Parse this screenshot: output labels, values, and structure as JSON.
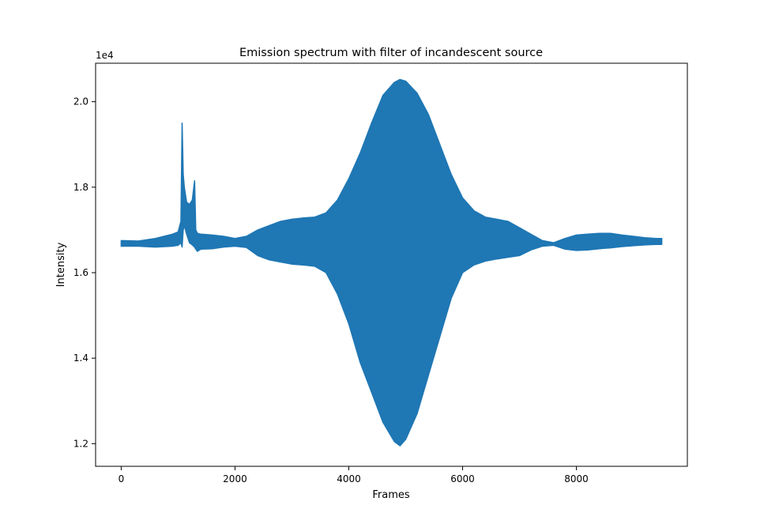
{
  "chart_data": {
    "type": "line",
    "title": "Emission spectrum with filter of incandescent source",
    "xlabel": "Frames",
    "ylabel": "Intensity",
    "y_offset_label": "1e4",
    "xlim": [
      -450,
      9950
    ],
    "ylim": [
      11470,
      20900
    ],
    "xticks": [
      0,
      2000,
      4000,
      6000,
      8000
    ],
    "xtick_labels": [
      "0",
      "2000",
      "4000",
      "6000",
      "8000"
    ],
    "yticks": [
      12000,
      14000,
      16000,
      18000,
      20000
    ],
    "ytick_labels": [
      "1.2",
      "1.4",
      "1.6",
      "1.8",
      "2.0"
    ],
    "grid": false,
    "legend": "none",
    "series_color": "#1f77b4",
    "series": [
      {
        "x": [
          0,
          300,
          600,
          900,
          1000,
          1050,
          1070,
          1090,
          1110,
          1150,
          1200,
          1250,
          1290,
          1310,
          1340,
          1400,
          1600,
          1800,
          2000,
          2200,
          2400,
          2600,
          2800,
          3000,
          3200,
          3400,
          3600,
          3800,
          4000,
          4200,
          4400,
          4600,
          4800,
          4900,
          5000,
          5200,
          5400,
          5600,
          5800,
          6000,
          6200,
          6400,
          6600,
          6800,
          7000,
          7200,
          7400,
          7600,
          7800,
          8000,
          8200,
          8400,
          8600,
          8800,
          9000,
          9200,
          9400,
          9500
        ],
        "upper": [
          16750,
          16740,
          16800,
          16900,
          16950,
          17200,
          19500,
          18300,
          18000,
          17650,
          17600,
          17700,
          18150,
          17000,
          16920,
          16900,
          16880,
          16850,
          16800,
          16850,
          17000,
          17100,
          17200,
          17250,
          17280,
          17300,
          17400,
          17700,
          18200,
          18800,
          19500,
          20150,
          20450,
          20520,
          20480,
          20200,
          19700,
          19000,
          18300,
          17750,
          17450,
          17300,
          17250,
          17200,
          17050,
          16900,
          16750,
          16700,
          16800,
          16880,
          16900,
          16920,
          16920,
          16880,
          16850,
          16820,
          16800,
          16800
        ],
        "lower": [
          16620,
          16620,
          16600,
          16620,
          16640,
          16700,
          16600,
          17000,
          17100,
          16900,
          16700,
          16650,
          16600,
          16550,
          16500,
          16550,
          16560,
          16600,
          16620,
          16590,
          16400,
          16300,
          16250,
          16200,
          16180,
          16150,
          16000,
          15500,
          14800,
          13900,
          13200,
          12500,
          12050,
          11950,
          12100,
          12700,
          13600,
          14500,
          15400,
          16000,
          16180,
          16270,
          16320,
          16360,
          16400,
          16530,
          16620,
          16640,
          16550,
          16520,
          16530,
          16560,
          16580,
          16610,
          16630,
          16650,
          16660,
          16660
        ]
      }
    ]
  }
}
